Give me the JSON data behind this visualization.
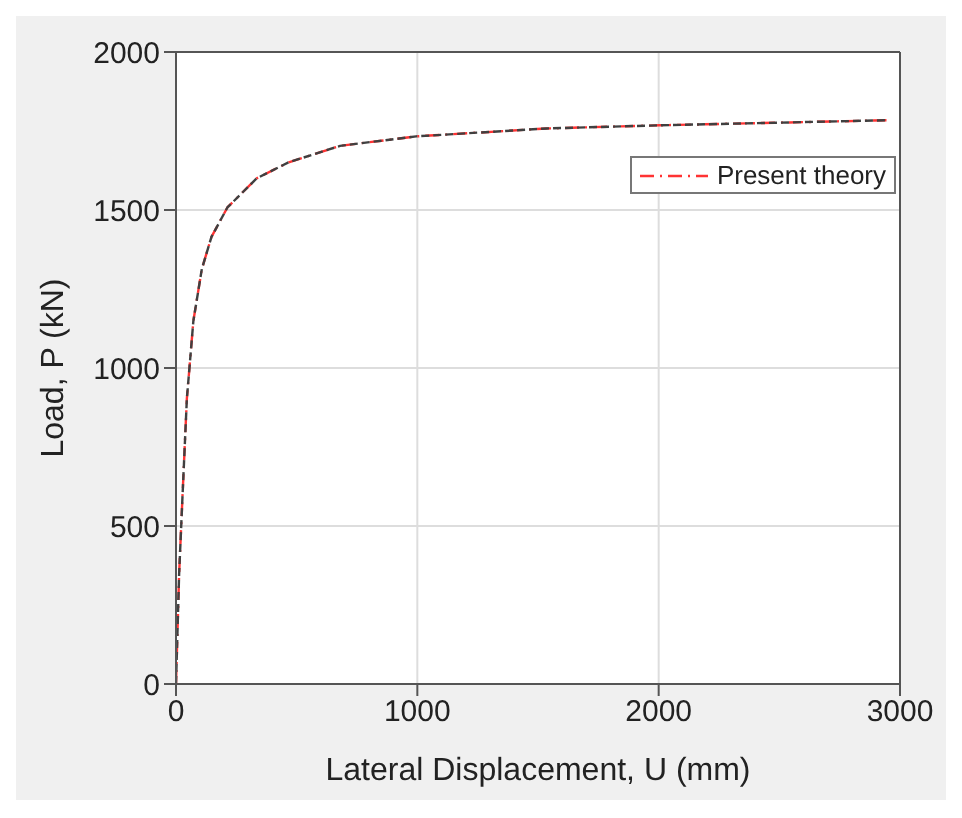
{
  "chart_data": {
    "type": "line",
    "xlabel": "Lateral Displacement, U (mm)",
    "ylabel": "Load, P (kN)",
    "x": [
      0,
      13,
      27,
      45,
      72,
      107,
      147,
      213,
      334,
      467,
      680,
      995,
      1535,
      2003,
      2944
    ],
    "series": [
      {
        "color": "#404040",
        "line_style": "dashed",
        "values": [
          0,
          349,
          595,
          903,
          1149,
          1313,
          1415,
          1508,
          1600,
          1651,
          1703,
          1733,
          1758,
          1768,
          1784
        ]
      },
      {
        "name": "Present theory",
        "color": "#ff3333",
        "line_style": "dashed",
        "values": [
          0,
          349,
          595,
          903,
          1149,
          1313,
          1415,
          1508,
          1600,
          1651,
          1703,
          1733,
          1758,
          1768,
          1784
        ]
      }
    ],
    "xlim": [
      0,
      3000
    ],
    "xticks": [
      0,
      1000,
      2000,
      3000
    ],
    "ylim": [
      0,
      2000
    ],
    "yticks": [
      0,
      500,
      1000,
      1500,
      2000
    ],
    "grid": true,
    "legend": "top right",
    "marker": "none"
  }
}
